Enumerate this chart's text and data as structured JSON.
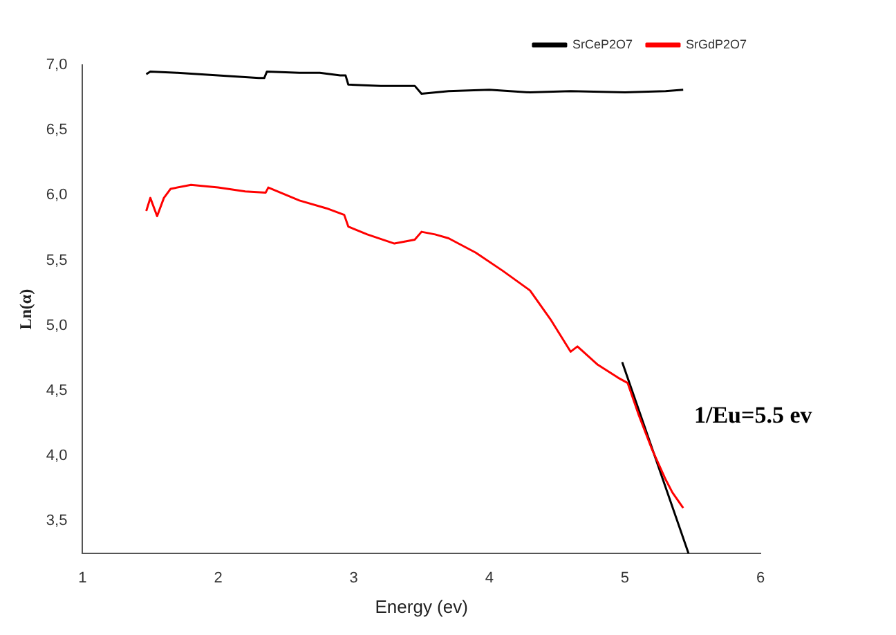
{
  "chart_data": {
    "type": "line",
    "xlabel": "Energy (ev)",
    "ylabel": "Ln(α)",
    "annotations": [
      "1/Eu=5.5 ev"
    ],
    "xlim": [
      1,
      6
    ],
    "xticks": [
      1,
      2,
      3,
      4,
      5,
      6
    ],
    "ylim": [
      3.25,
      7.0
    ],
    "yticks": [
      {
        "value": 3.5,
        "label": "3,5"
      },
      {
        "value": 4.0,
        "label": "4,0"
      },
      {
        "value": 4.5,
        "label": "4,5"
      },
      {
        "value": 5.0,
        "label": "5,0"
      },
      {
        "value": 5.5,
        "label": "5,5"
      },
      {
        "value": 6.0,
        "label": "6,0"
      },
      {
        "value": 6.5,
        "label": "6,5"
      },
      {
        "value": 7.0,
        "label": "7,0"
      }
    ],
    "grid": false,
    "legend": "top right",
    "marker": "none",
    "line_style": "solid",
    "series": [
      {
        "name": "SrCeP2O7",
        "color": "#000000",
        "x": [
          1.47,
          1.5,
          1.7,
          2.0,
          2.3,
          2.34,
          2.36,
          2.6,
          2.75,
          2.9,
          2.94,
          2.96,
          3.2,
          3.45,
          3.5,
          3.7,
          4.0,
          4.3,
          4.6,
          5.0,
          5.3,
          5.43
        ],
        "values": [
          6.93,
          6.95,
          6.94,
          6.92,
          6.9,
          6.9,
          6.95,
          6.94,
          6.94,
          6.92,
          6.92,
          6.85,
          6.84,
          6.84,
          6.78,
          6.8,
          6.81,
          6.79,
          6.8,
          6.79,
          6.8,
          6.81
        ]
      },
      {
        "name": "SrGdP2O7",
        "color": "#ff0000",
        "x": [
          1.47,
          1.5,
          1.55,
          1.6,
          1.65,
          1.8,
          2.0,
          2.2,
          2.35,
          2.37,
          2.6,
          2.8,
          2.93,
          2.96,
          3.1,
          3.3,
          3.45,
          3.5,
          3.6,
          3.7,
          3.9,
          4.1,
          4.3,
          4.45,
          4.6,
          4.65,
          4.8,
          4.95,
          5.02,
          5.1,
          5.2,
          5.3,
          5.35,
          5.43
        ],
        "values": [
          5.88,
          5.98,
          5.84,
          5.98,
          6.05,
          6.08,
          6.06,
          6.03,
          6.02,
          6.06,
          5.96,
          5.9,
          5.85,
          5.76,
          5.7,
          5.63,
          5.66,
          5.72,
          5.7,
          5.67,
          5.56,
          5.42,
          5.27,
          5.05,
          4.8,
          4.84,
          4.7,
          4.6,
          4.56,
          4.32,
          4.05,
          3.82,
          3.72,
          3.6
        ]
      },
      {
        "type": "line",
        "color": "#000000",
        "x": [
          4.98,
          5.47
        ],
        "values": [
          4.72,
          3.25
        ]
      }
    ]
  }
}
